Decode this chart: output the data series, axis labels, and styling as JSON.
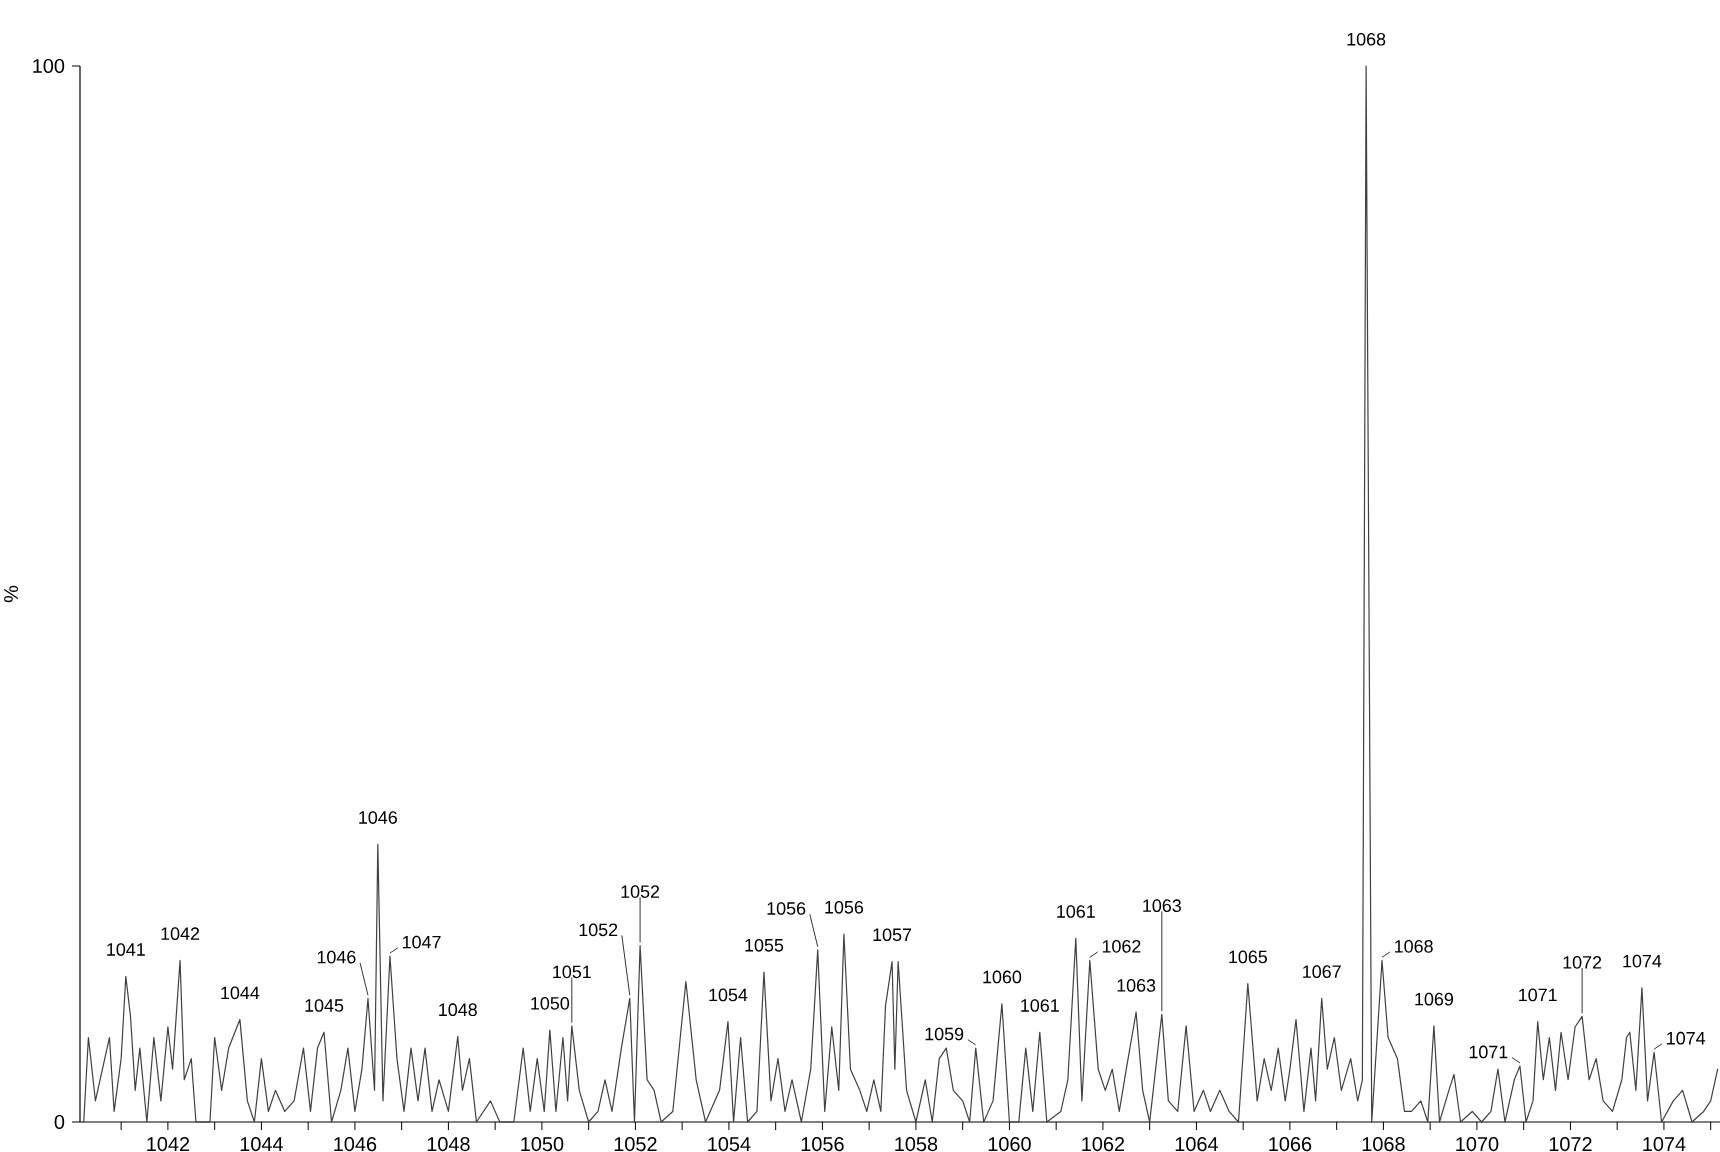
{
  "chart_data": {
    "type": "line",
    "ylabel": "%",
    "color": "#404040",
    "xlim": [
      1040.12,
      1075.2
    ],
    "ylim": [
      0,
      100
    ],
    "yticks": [
      0,
      100
    ],
    "xticks": [
      {
        "value": 1041,
        "label": null
      },
      1042,
      {
        "value": 1043,
        "label": null
      },
      1044,
      {
        "value": 1045,
        "label": null
      },
      1046,
      {
        "value": 1047,
        "label": null
      },
      1048,
      {
        "value": 1049,
        "label": null
      },
      1050,
      {
        "value": 1051,
        "label": null
      },
      1052,
      {
        "value": 1053,
        "label": null
      },
      1054,
      {
        "value": 1055,
        "label": null
      },
      1056,
      {
        "value": 1057,
        "label": null
      },
      1058,
      {
        "value": 1059,
        "label": null
      },
      1060,
      {
        "value": 1061,
        "label": null
      },
      1062,
      {
        "value": 1063,
        "label": null
      },
      1064,
      {
        "value": 1065,
        "label": null
      },
      1066,
      {
        "value": 1067,
        "label": null
      },
      1068,
      {
        "value": 1069,
        "label": null
      },
      1070,
      {
        "value": 1071,
        "label": null
      },
      1072,
      {
        "value": 1073,
        "label": null
      },
      1074,
      {
        "value": 1075,
        "label": null
      }
    ],
    "x": [
      1040.2,
      1040.3,
      1040.45,
      1040.6,
      1040.75,
      1040.85,
      1041.0,
      1041.1,
      1041.2,
      1041.3,
      1041.4,
      1041.55,
      1041.7,
      1041.85,
      1042.0,
      1042.1,
      1042.26,
      1042.35,
      1042.5,
      1042.6,
      1042.9,
      1043.0,
      1043.15,
      1043.3,
      1043.54,
      1043.7,
      1043.85,
      1044.0,
      1044.15,
      1044.3,
      1044.5,
      1044.7,
      1044.9,
      1045.05,
      1045.2,
      1045.34,
      1045.5,
      1045.7,
      1045.85,
      1046.0,
      1046.15,
      1046.28,
      1046.42,
      1046.49,
      1046.6,
      1046.75,
      1046.9,
      1047.05,
      1047.2,
      1047.35,
      1047.5,
      1047.65,
      1047.8,
      1048.0,
      1048.2,
      1048.3,
      1048.45,
      1048.6,
      1048.9,
      1049.1,
      1049.4,
      1049.6,
      1049.75,
      1049.9,
      1050.05,
      1050.17,
      1050.3,
      1050.45,
      1050.55,
      1050.64,
      1050.8,
      1051.0,
      1051.2,
      1051.35,
      1051.5,
      1051.7,
      1051.88,
      1051.98,
      1052.1,
      1052.25,
      1052.4,
      1052.55,
      1052.8,
      1053.08,
      1053.3,
      1053.5,
      1053.8,
      1053.98,
      1054.1,
      1054.25,
      1054.4,
      1054.6,
      1054.75,
      1054.9,
      1055.05,
      1055.2,
      1055.35,
      1055.55,
      1055.75,
      1055.9,
      1056.05,
      1056.2,
      1056.35,
      1056.46,
      1056.6,
      1056.8,
      1056.95,
      1057.1,
      1057.25,
      1057.35,
      1057.49,
      1057.55,
      1057.62,
      1057.8,
      1058.0,
      1058.2,
      1058.35,
      1058.5,
      1058.65,
      1058.8,
      1059.0,
      1059.15,
      1059.28,
      1059.45,
      1059.65,
      1059.84,
      1060.0,
      1060.2,
      1060.35,
      1060.5,
      1060.65,
      1060.8,
      1061.1,
      1061.25,
      1061.42,
      1061.55,
      1061.72,
      1061.9,
      1062.05,
      1062.2,
      1062.35,
      1062.5,
      1062.71,
      1062.85,
      1063.0,
      1063.26,
      1063.4,
      1063.6,
      1063.78,
      1063.95,
      1064.15,
      1064.3,
      1064.5,
      1064.7,
      1064.9,
      1065.1,
      1065.3,
      1065.45,
      1065.6,
      1065.75,
      1065.9,
      1066.0,
      1066.13,
      1066.3,
      1066.45,
      1066.55,
      1066.68,
      1066.8,
      1066.95,
      1067.1,
      1067.3,
      1067.45,
      1067.55,
      1067.63,
      1067.75,
      1067.97,
      1068.1,
      1068.3,
      1068.45,
      1068.6,
      1068.8,
      1068.95,
      1069.08,
      1069.2,
      1069.4,
      1069.51,
      1069.65,
      1069.9,
      1070.1,
      1070.3,
      1070.45,
      1070.6,
      1070.8,
      1070.92,
      1071.05,
      1071.2,
      1071.3,
      1071.42,
      1071.55,
      1071.68,
      1071.8,
      1071.95,
      1072.1,
      1072.25,
      1072.4,
      1072.55,
      1072.7,
      1072.9,
      1073.1,
      1073.2,
      1073.27,
      1073.4,
      1073.53,
      1073.65,
      1073.79,
      1073.95,
      1074.2,
      1074.4,
      1074.6,
      1074.85,
      1075.0,
      1075.15
    ],
    "values": [
      0,
      8,
      2,
      5,
      8,
      1,
      6,
      13.8,
      10,
      3,
      7,
      0,
      8,
      2,
      9,
      5,
      15.3,
      4,
      6,
      0,
      0,
      8,
      3,
      7,
      9.7,
      2,
      0,
      6,
      1,
      3,
      1,
      2,
      7,
      1,
      7,
      8.5,
      0,
      3,
      7,
      1,
      5,
      11.7,
      3,
      26.3,
      2,
      15.7,
      6,
      1,
      7,
      2,
      7,
      1,
      4,
      1,
      8.1,
      3,
      6,
      0,
      2,
      0,
      0,
      7,
      1,
      6,
      1,
      8.7,
      1,
      8,
      2,
      9.1,
      3,
      0,
      1,
      4,
      1,
      7,
      11.7,
      0,
      16.7,
      4,
      3,
      0,
      1,
      13.3,
      4,
      0,
      3,
      9.5,
      0,
      8,
      0,
      1,
      14.2,
      2,
      6,
      1,
      4,
      0,
      5,
      16.3,
      1,
      9,
      3,
      17.8,
      5,
      3,
      1,
      4,
      1,
      11,
      15.2,
      5,
      15.2,
      3,
      0,
      4,
      0,
      6,
      7,
      3,
      2,
      0,
      7.0,
      0,
      2,
      11.2,
      0,
      0,
      7,
      1,
      8.5,
      0,
      1,
      4,
      17.4,
      2,
      15.3,
      5,
      3,
      5,
      1,
      5,
      10.4,
      3,
      0,
      10.2,
      2,
      1,
      9.1,
      1,
      3,
      1,
      3,
      1,
      0,
      13.1,
      2,
      6,
      3,
      7,
      2,
      5,
      9.7,
      1,
      7,
      2,
      11.7,
      5,
      8,
      3,
      6,
      2,
      4,
      100,
      0,
      15.3,
      8,
      6,
      1,
      1,
      2,
      0,
      9.1,
      0,
      3,
      4.5,
      0,
      1,
      0,
      1,
      5,
      0,
      4,
      5.3,
      0,
      2,
      9.5,
      4,
      8,
      3,
      8.5,
      4,
      9,
      10.0,
      4,
      6,
      2,
      1,
      4,
      8,
      8.5,
      3,
      12.7,
      2,
      6.6,
      0,
      2,
      3,
      0,
      1,
      2,
      5
    ],
    "annotations": [
      {
        "text": "1041",
        "x": 1041.1,
        "y": 13.8
      },
      {
        "text": "1042",
        "x": 1042.26,
        "y": 15.3
      },
      {
        "text": "1044",
        "x": 1043.54,
        "y": 9.7
      },
      {
        "text": "1045",
        "x": 1045.34,
        "y": 8.5
      },
      {
        "text": "1046",
        "x": 1046.28,
        "y": 11.7
      },
      {
        "text": "1046",
        "x": 1046.49,
        "y": 26.3
      },
      {
        "text": "1047",
        "x": 1046.75,
        "y": 15.7
      },
      {
        "text": "1048",
        "x": 1048.2,
        "y": 8.1
      },
      {
        "text": "1050",
        "x": 1050.17,
        "y": 8.7
      },
      {
        "text": "1051",
        "x": 1050.64,
        "y": 9.1
      },
      {
        "text": "1052",
        "x": 1051.88,
        "y": 11.7
      },
      {
        "text": "1052",
        "x": 1052.1,
        "y": 16.7
      },
      {
        "text": "1054",
        "x": 1053.98,
        "y": 9.5
      },
      {
        "text": "1055",
        "x": 1054.75,
        "y": 14.2
      },
      {
        "text": "1056",
        "x": 1055.9,
        "y": 16.3
      },
      {
        "text": "1056",
        "x": 1056.46,
        "y": 17.8
      },
      {
        "text": "1057",
        "x": 1057.49,
        "y": 15.2
      },
      {
        "text": "1059",
        "x": 1059.28,
        "y": 7.0
      },
      {
        "text": "1060",
        "x": 1059.84,
        "y": 11.2
      },
      {
        "text": "1061",
        "x": 1060.65,
        "y": 8.5
      },
      {
        "text": "1061",
        "x": 1061.42,
        "y": 17.4
      },
      {
        "text": "1062",
        "x": 1061.72,
        "y": 15.3
      },
      {
        "text": "1063",
        "x": 1062.71,
        "y": 10.4
      },
      {
        "text": "1063",
        "x": 1063.26,
        "y": 10.2
      },
      {
        "text": "1065",
        "x": 1065.1,
        "y": 13.1
      },
      {
        "text": "1067",
        "x": 1066.68,
        "y": 11.7
      },
      {
        "text": "1068",
        "x": 1067.63,
        "y": 100
      },
      {
        "text": "1068",
        "x": 1067.97,
        "y": 15.3
      },
      {
        "text": "1069",
        "x": 1069.08,
        "y": 9.1
      },
      {
        "text": "1071",
        "x": 1070.92,
        "y": 5.3
      },
      {
        "text": "1071",
        "x": 1071.3,
        "y": 9.5
      },
      {
        "text": "1072",
        "x": 1072.25,
        "y": 10.0
      },
      {
        "text": "1074",
        "x": 1073.53,
        "y": 12.7
      },
      {
        "text": "1074",
        "x": 1073.79,
        "y": 6.6
      }
    ]
  }
}
